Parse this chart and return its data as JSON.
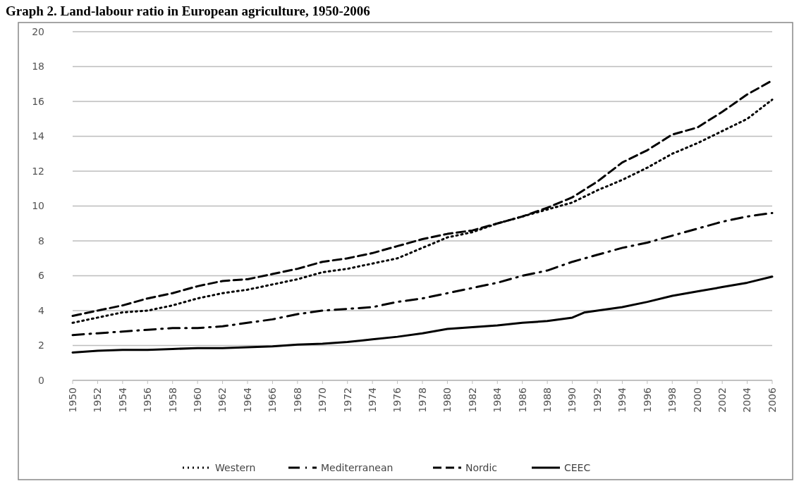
{
  "chart_data": {
    "type": "line",
    "title": "Graph 2. Land-labour ratio in European agriculture, 1950-2006",
    "x": [
      1950,
      1952,
      1954,
      1956,
      1958,
      1960,
      1962,
      1964,
      1966,
      1968,
      1970,
      1972,
      1974,
      1976,
      1978,
      1980,
      1982,
      1984,
      1986,
      1988,
      1990,
      1992,
      1994,
      1996,
      1998,
      2000,
      2002,
      2004,
      2006
    ],
    "xlim": [
      1950,
      2006
    ],
    "xticks": [
      1950,
      1952,
      1954,
      1956,
      1958,
      1960,
      1962,
      1964,
      1966,
      1968,
      1970,
      1972,
      1974,
      1976,
      1978,
      1980,
      1982,
      1984,
      1986,
      1988,
      1990,
      1992,
      1994,
      1996,
      1998,
      2000,
      2002,
      2004,
      2006
    ],
    "ylim": [
      0,
      20
    ],
    "yticks": [
      0,
      2,
      4,
      6,
      8,
      10,
      12,
      14,
      16,
      18,
      20
    ],
    "grid": "y",
    "legend": "bottom",
    "series": [
      {
        "name": "Western",
        "color": "#000000",
        "line_style": "dotted",
        "values": [
          3.3,
          3.6,
          3.9,
          4.0,
          4.3,
          4.7,
          5.0,
          5.2,
          5.5,
          5.8,
          6.2,
          6.4,
          6.7,
          7.0,
          7.6,
          8.2,
          8.5,
          9.0,
          9.4,
          9.8,
          10.2,
          10.9,
          11.5,
          12.2,
          13.0,
          13.6,
          14.3,
          15.0,
          16.1
        ]
      },
      {
        "name": "Mediterranean",
        "color": "#000000",
        "line_style": "dashdot",
        "values": [
          2.6,
          2.7,
          2.8,
          2.9,
          3.0,
          3.0,
          3.1,
          3.3,
          3.5,
          3.8,
          4.0,
          4.1,
          4.2,
          4.5,
          4.7,
          5.0,
          5.3,
          5.6,
          6.0,
          6.3,
          6.8,
          7.2,
          7.6,
          7.9,
          8.3,
          8.7,
          9.1,
          9.4,
          9.6
        ]
      },
      {
        "name": "Nordic",
        "color": "#000000",
        "line_style": "dashed",
        "values": [
          3.7,
          4.0,
          4.3,
          4.7,
          5.0,
          5.4,
          5.7,
          5.8,
          6.1,
          6.4,
          6.8,
          7.0,
          7.3,
          7.7,
          8.1,
          8.4,
          8.6,
          9.0,
          9.4,
          9.9,
          10.5,
          11.4,
          12.5,
          13.2,
          14.1,
          14.5,
          15.4,
          16.4,
          17.2
        ]
      },
      {
        "name": "CEEC",
        "color": "#000000",
        "line_style": "solid",
        "x": [
          1950,
          1952,
          1954,
          1956,
          1958,
          1960,
          1962,
          1964,
          1966,
          1968,
          1970,
          1972,
          1974,
          1976,
          1978,
          1980,
          1982,
          1984,
          1986,
          1988,
          1990,
          1991,
          1992,
          1994,
          1996,
          1998,
          2000,
          2002,
          2004,
          2006
        ],
        "values": [
          1.6,
          1.7,
          1.75,
          1.75,
          1.8,
          1.85,
          1.85,
          1.9,
          1.95,
          2.05,
          2.1,
          2.2,
          2.35,
          2.5,
          2.7,
          2.95,
          3.05,
          3.15,
          3.3,
          3.4,
          3.6,
          3.9,
          4.0,
          4.2,
          4.5,
          4.85,
          5.1,
          5.35,
          5.6,
          5.95
        ]
      }
    ]
  }
}
